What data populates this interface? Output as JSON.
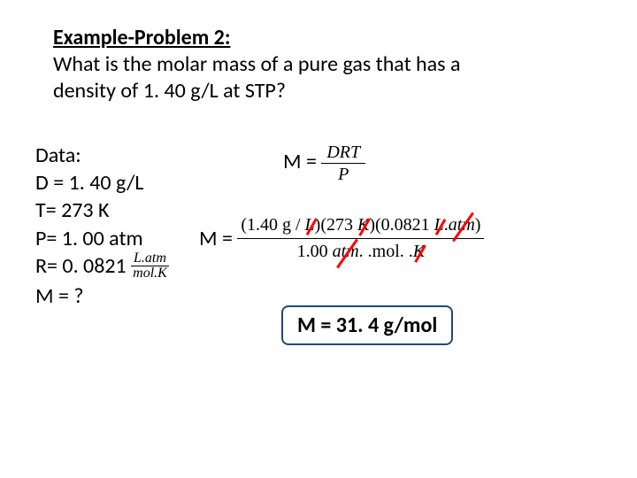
{
  "header": {
    "title": "Example-Problem 2:",
    "question_l1": "What is the molar mass of a pure gas that has a",
    "question_l2": "density of 1. 40 g/L at STP?"
  },
  "data_section": {
    "heading": "Data:",
    "D": "D = 1. 40 g/L",
    "T": "T=  273 K",
    "P": "P= 1. 00 atm",
    "R_label": "R= 0. 0821",
    "R_units_num": "L.atm",
    "R_units_den": "mol.K",
    "M": "M = ?"
  },
  "formula1": {
    "lhs": "M = ",
    "num": "DRT",
    "den": "P"
  },
  "formula2": {
    "lhs": "M = ",
    "num_p1": "(1.40 g / ",
    "num_s1": "L",
    "num_p2": ")(273 ",
    "num_s2": "K",
    "num_p3": ")(0.0821 ",
    "num_s3": "L",
    "num_p4": ".",
    "num_s4": "atm",
    "num_p5": ")",
    "den_p1": "1.00 ",
    "den_s1": "atm",
    "den_p2": ". .mol. .",
    "den_s2": "K"
  },
  "answer": {
    "text": "M =  31. 4 g/mol"
  },
  "colors": {
    "text": "#000000",
    "strike": "#ff0000",
    "box_border": "#1f497d",
    "background": "#ffffff"
  }
}
